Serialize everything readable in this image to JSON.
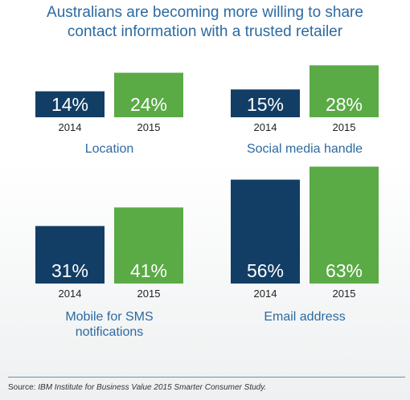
{
  "title_lines": [
    "Australians are becoming more willing to share",
    "contact information with a trusted retailer"
  ],
  "source": {
    "label": "Source:",
    "text": "IBM Institute for Business Value 2015 Smarter Consumer Study."
  },
  "colors": {
    "y2014": "#123e66",
    "y2015": "#5aaa46",
    "title": "#2d6aa0"
  },
  "chart_data": [
    {
      "type": "bar",
      "title": "Location",
      "categories": [
        "2014",
        "2015"
      ],
      "values": [
        14,
        24
      ],
      "labels": [
        "14%",
        "24%"
      ]
    },
    {
      "type": "bar",
      "title": "Social media handle",
      "categories": [
        "2014",
        "2015"
      ],
      "values": [
        15,
        28
      ],
      "labels": [
        "15%",
        "28%"
      ]
    },
    {
      "type": "bar",
      "title": "Mobile for SMS notifications",
      "title_lines": [
        "Mobile for SMS",
        "notifications"
      ],
      "categories": [
        "2014",
        "2015"
      ],
      "values": [
        31,
        41
      ],
      "labels": [
        "31%",
        "41%"
      ]
    },
    {
      "type": "bar",
      "title": "Email address",
      "categories": [
        "2014",
        "2015"
      ],
      "values": [
        56,
        63
      ],
      "labels": [
        "56%",
        "63%"
      ]
    }
  ]
}
